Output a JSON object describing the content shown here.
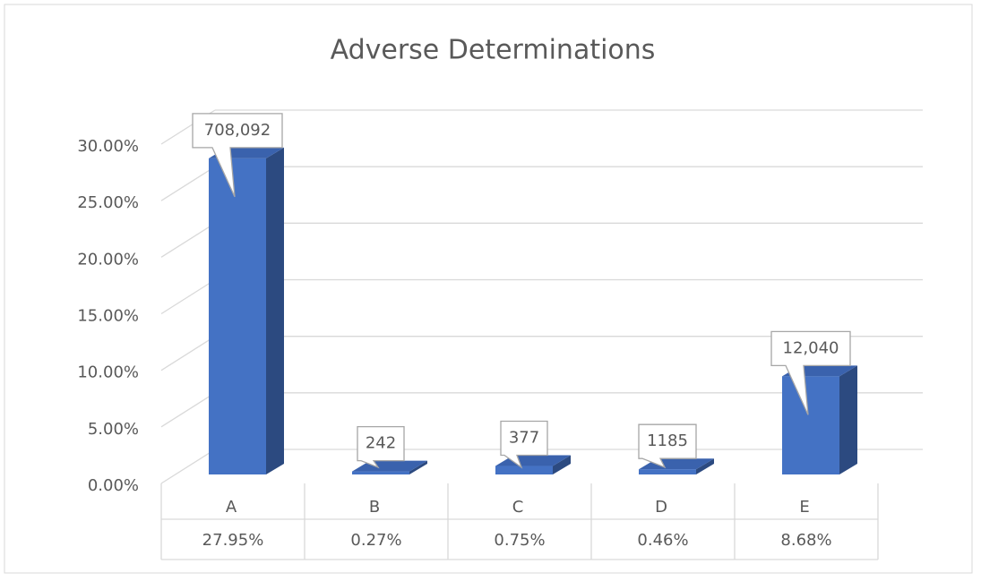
{
  "chart_data": {
    "type": "bar3d",
    "title": "Adverse Determinations",
    "categories": [
      "A",
      "B",
      "C",
      "D",
      "E"
    ],
    "values": [
      27.95,
      0.27,
      0.75,
      0.46,
      8.68
    ],
    "value_labels": [
      "27.95%",
      "0.27%",
      "0.75%",
      "0.46%",
      "8.68%"
    ],
    "annotations": [
      "708,092",
      "242",
      "377",
      "1185",
      "12,040"
    ],
    "color": "#4472c4",
    "ylim": [
      0,
      30
    ],
    "yticks": [
      {
        "value": 0,
        "label": "0.00%"
      },
      {
        "value": 5,
        "label": "5.00%"
      },
      {
        "value": 10,
        "label": "10.00%"
      },
      {
        "value": 15,
        "label": "15.00%"
      },
      {
        "value": 20,
        "label": "20.00%"
      },
      {
        "value": 25,
        "label": "25.00%"
      },
      {
        "value": 30,
        "label": "30.00%"
      }
    ],
    "grid": true
  }
}
